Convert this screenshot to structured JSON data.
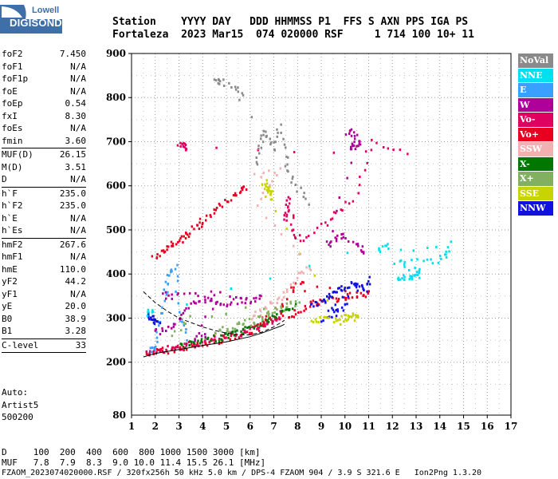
{
  "logo": {
    "top": "Lowell",
    "bottom": "DIGISONDE",
    "color": "#3f6fa8"
  },
  "header": {
    "row1": "Station    YYYY DAY   DDD HHMMSS P1  FFS S AXN PPS IGA PS",
    "row2": "Fortaleza  2023 Mar15  074 020000 RSF     1 714 100 10+ 11"
  },
  "params": [
    {
      "label": "foF2",
      "value": "7.450"
    },
    {
      "label": "foF1",
      "value": "N/A"
    },
    {
      "label": "foF1p",
      "value": "N/A"
    },
    {
      "label": "foE",
      "value": "N/A"
    },
    {
      "label": "foEp",
      "value": "0.54"
    },
    {
      "label": "fxI",
      "value": "8.30"
    },
    {
      "label": "foEs",
      "value": "N/A"
    },
    {
      "label": "fmin",
      "value": "3.60"
    },
    {
      "sep": true
    },
    {
      "label": "MUF(D)",
      "value": "26.15"
    },
    {
      "label": "M(D)",
      "value": "3.51"
    },
    {
      "label": "D",
      "value": "N/A"
    },
    {
      "sep": true
    },
    {
      "label": "h`F",
      "value": "235.0"
    },
    {
      "label": "h`F2",
      "value": "235.0"
    },
    {
      "label": "h`E",
      "value": "N/A"
    },
    {
      "label": "h`Es",
      "value": "N/A"
    },
    {
      "sep": true
    },
    {
      "label": "hmF2",
      "value": "267.6"
    },
    {
      "label": "hmF1",
      "value": "N/A"
    },
    {
      "label": "hmE",
      "value": "110.0"
    },
    {
      "label": "yF2",
      "value": "44.2"
    },
    {
      "label": "yF1",
      "value": "N/A"
    },
    {
      "label": "yE",
      "value": "20.0"
    },
    {
      "label": "B0",
      "value": "38.9"
    },
    {
      "label": "B1",
      "value": "3.28"
    },
    {
      "sep": true
    },
    {
      "label": "C-level",
      "value": "33"
    },
    {
      "sep": true
    }
  ],
  "auto": {
    "line1": "Auto:",
    "line2": "Artist5",
    "line3": "500200"
  },
  "legend": [
    {
      "label": "NoVal",
      "color": "#8a8a8a"
    },
    {
      "label": "NNE",
      "color": "#00e0f0"
    },
    {
      "label": "E",
      "color": "#3aa0ff"
    },
    {
      "label": "W",
      "color": "#b0009a"
    },
    {
      "label": "Vo-",
      "color": "#e00060"
    },
    {
      "label": "Vo+",
      "color": "#e80020"
    },
    {
      "label": "SSW",
      "color": "#f4b0b0"
    },
    {
      "label": "X-",
      "color": "#007800"
    },
    {
      "label": "X+",
      "color": "#80b060"
    },
    {
      "label": "SSE",
      "color": "#c8d400"
    },
    {
      "label": "NNW",
      "color": "#1010e0"
    }
  ],
  "footer": {
    "d_row": "D     100  200  400  600  800 1000 1500 3000 [km]",
    "muf_row": "MUF   7.8  7.9  8.3  9.0 10.0 11.4 15.5 26.1 [MHz]",
    "info_row": "FZAOM_2023074020000.RSF / 320fx256h 50 kHz 5.0 km / DPS-4 FZAOM 904 / 3.9 S 321.6 E   Ion2Png 1.3.20"
  },
  "chart_data": {
    "type": "scatter",
    "title": "",
    "xlabel": "",
    "ylabel": "",
    "xlim": [
      1,
      17
    ],
    "ylim": [
      80,
      900
    ],
    "x_ticks": [
      1,
      2,
      3,
      4,
      5,
      6,
      7,
      8,
      9,
      10,
      11,
      12,
      13,
      14,
      15,
      16,
      17
    ],
    "y_ticks": [
      200,
      300,
      400,
      500,
      600,
      700,
      800,
      900
    ],
    "y_tick_labels": [
      "200",
      "300",
      "400",
      "500",
      "600",
      "700",
      "800",
      "900"
    ],
    "y_bottom_label": "80",
    "grid": true,
    "legend_position": "right",
    "traces": [
      {
        "name": "Vo+",
        "color": "#e80020",
        "points": [
          [
            1.6,
            222
          ],
          [
            2.0,
            226
          ],
          [
            2.5,
            230
          ],
          [
            3.0,
            234
          ],
          [
            3.5,
            238
          ],
          [
            4.0,
            243
          ],
          [
            4.5,
            250
          ],
          [
            5.0,
            257
          ],
          [
            5.5,
            264
          ],
          [
            6.0,
            272
          ],
          [
            6.5,
            282
          ],
          [
            7.0,
            294
          ],
          [
            7.3,
            310
          ],
          [
            7.45,
            335
          ]
        ]
      },
      {
        "name": "Vo-",
        "color": "#e00060",
        "points": [
          [
            1.6,
            225
          ],
          [
            2.0,
            229
          ],
          [
            2.5,
            233
          ],
          [
            3.0,
            238
          ],
          [
            3.5,
            242
          ],
          [
            4.0,
            247
          ],
          [
            4.5,
            254
          ],
          [
            5.0,
            261
          ],
          [
            5.5,
            268
          ],
          [
            6.0,
            276
          ],
          [
            6.5,
            286
          ],
          [
            7.0,
            298
          ],
          [
            7.3,
            315
          ]
        ]
      },
      {
        "name": "X-",
        "color": "#007800",
        "points": [
          [
            3.0,
            240
          ],
          [
            3.5,
            244
          ],
          [
            4.0,
            250
          ],
          [
            4.5,
            256
          ],
          [
            5.0,
            263
          ],
          [
            5.5,
            271
          ],
          [
            6.0,
            280
          ],
          [
            6.5,
            292
          ],
          [
            7.0,
            306
          ],
          [
            7.5,
            320
          ],
          [
            7.9,
            330
          ]
        ]
      },
      {
        "name": "E",
        "color": "#3aa0ff",
        "points": [
          [
            1.7,
            230
          ],
          [
            2.0,
            240
          ],
          [
            2.2,
            300
          ],
          [
            2.4,
            360
          ],
          [
            2.6,
            400
          ],
          [
            2.8,
            420
          ],
          [
            3.0,
            300
          ],
          [
            3.4,
            250
          ]
        ]
      },
      {
        "name": "W",
        "color": "#b0009a",
        "points": [
          [
            1.9,
            270
          ],
          [
            2.5,
            280
          ],
          [
            3.0,
            300
          ],
          [
            3.5,
            330
          ],
          [
            4.0,
            345
          ],
          [
            4.5,
            340
          ],
          [
            5.0,
            335
          ],
          [
            5.5,
            345
          ],
          [
            6.0,
            340
          ],
          [
            6.5,
            350
          ],
          [
            2.3,
            355
          ],
          [
            2.8,
            350
          ],
          [
            4.7,
            360
          ],
          [
            3.6,
            258
          ],
          [
            4.2,
            262
          ]
        ]
      },
      {
        "name": "Vo+",
        "color": "#e80020",
        "points": [
          [
            1.9,
            440
          ],
          [
            2.5,
            460
          ],
          [
            3.0,
            480
          ],
          [
            3.5,
            500
          ],
          [
            4.0,
            520
          ],
          [
            4.5,
            545
          ],
          [
            5.0,
            570
          ],
          [
            5.5,
            590
          ],
          [
            5.8,
            600
          ],
          [
            2.0,
            445
          ],
          [
            2.8,
            470
          ],
          [
            4.2,
            530
          ]
        ]
      },
      {
        "name": "Vo+",
        "color": "#e80020",
        "points": [
          [
            7.6,
            300
          ],
          [
            8.0,
            320
          ],
          [
            8.5,
            335
          ],
          [
            9.0,
            340
          ],
          [
            9.5,
            345
          ],
          [
            10.0,
            350
          ],
          [
            10.5,
            355
          ],
          [
            11.0,
            360
          ],
          [
            7.7,
            370
          ],
          [
            8.2,
            380
          ],
          [
            6.3,
            290
          ],
          [
            6.8,
            310
          ]
        ]
      },
      {
        "name": "NNW",
        "color": "#1010e0",
        "points": [
          [
            8.5,
            330
          ],
          [
            9.0,
            340
          ],
          [
            9.3,
            350
          ],
          [
            9.6,
            360
          ],
          [
            9.9,
            370
          ],
          [
            10.2,
            380
          ],
          [
            10.5,
            375
          ],
          [
            10.8,
            365
          ],
          [
            11.0,
            390
          ],
          [
            9.2,
            320
          ],
          [
            10.0,
            330
          ],
          [
            9.5,
            310
          ],
          [
            8.8,
            300
          ]
        ]
      },
      {
        "name": "NNW",
        "color": "#1010e0",
        "points": [
          [
            1.7,
            310
          ],
          [
            1.8,
            305
          ],
          [
            2.0,
            295
          ],
          [
            2.1,
            290
          ]
        ]
      },
      {
        "name": "SSE",
        "color": "#c8d400",
        "points": [
          [
            8.6,
            295
          ],
          [
            9.0,
            300
          ],
          [
            9.5,
            300
          ],
          [
            10.0,
            305
          ],
          [
            10.5,
            300
          ],
          [
            10.3,
            310
          ],
          [
            9.8,
            295
          ],
          [
            6.5,
            600
          ],
          [
            6.8,
            590
          ],
          [
            6.9,
            575
          ],
          [
            6.6,
            610
          ],
          [
            6.7,
            580
          ]
        ]
      },
      {
        "name": "NNE",
        "color": "#00e0f0",
        "points": [
          [
            12.2,
            390
          ],
          [
            12.5,
            395
          ],
          [
            12.8,
            392
          ],
          [
            13.0,
            400
          ],
          [
            13.1,
            410
          ],
          [
            12.0,
            430
          ],
          [
            13.5,
            430
          ],
          [
            14.2,
            440
          ],
          [
            14.4,
            470
          ],
          [
            11.3,
            450
          ],
          [
            11.8,
            470
          ],
          [
            1.7,
            310
          ],
          [
            1.8,
            320
          ]
        ]
      },
      {
        "name": "W",
        "color": "#b0009a",
        "points": [
          [
            10.0,
            720
          ],
          [
            10.3,
            725
          ],
          [
            10.6,
            700
          ],
          [
            10.2,
            690
          ],
          [
            10.4,
            690
          ],
          [
            9.2,
            470
          ],
          [
            9.6,
            480
          ],
          [
            9.9,
            490
          ],
          [
            10.6,
            460
          ],
          [
            10.8,
            450
          ]
        ]
      },
      {
        "name": "Vo-",
        "color": "#e00060",
        "points": [
          [
            7.4,
            520
          ],
          [
            7.5,
            550
          ],
          [
            7.6,
            580
          ],
          [
            7.8,
            500
          ],
          [
            8.0,
            480
          ],
          [
            9.0,
            510
          ],
          [
            9.6,
            540
          ],
          [
            10.5,
            580
          ],
          [
            11.0,
            700
          ],
          [
            12.6,
            680
          ],
          [
            3.0,
            690
          ],
          [
            3.2,
            695
          ],
          [
            3.3,
            680
          ]
        ]
      },
      {
        "name": "NoVal",
        "color": "#8a8a8a",
        "points": [
          [
            6.2,
            650
          ],
          [
            6.4,
            700
          ],
          [
            6.6,
            720
          ],
          [
            7.0,
            690
          ],
          [
            7.2,
            740
          ],
          [
            7.5,
            660
          ],
          [
            7.8,
            610
          ],
          [
            8.5,
            560
          ],
          [
            5.6,
            800
          ],
          [
            5.4,
            830
          ],
          [
            4.5,
            840
          ],
          [
            4.7,
            835
          ]
        ]
      },
      {
        "name": "SSW",
        "color": "#f4b0b0",
        "points": [
          [
            6.0,
            300
          ],
          [
            6.5,
            320
          ],
          [
            7.0,
            340
          ],
          [
            7.5,
            360
          ],
          [
            8.0,
            400
          ],
          [
            8.5,
            420
          ],
          [
            6.2,
            560
          ],
          [
            7.2,
            640
          ],
          [
            5.9,
            620
          ]
        ]
      },
      {
        "name": "X+",
        "color": "#80b060",
        "points": [
          [
            4.5,
            270
          ],
          [
            5.0,
            278
          ],
          [
            5.5,
            286
          ],
          [
            6.0,
            294
          ],
          [
            6.5,
            305
          ],
          [
            7.0,
            318
          ],
          [
            7.5,
            330
          ],
          [
            8.0,
            340
          ],
          [
            3.5,
            300
          ],
          [
            2.5,
            260
          ]
        ]
      }
    ],
    "profile_curve": [
      [
        1.5,
        212
      ],
      [
        2.0,
        220
      ],
      [
        3.0,
        229
      ],
      [
        4.0,
        238
      ],
      [
        5.0,
        246
      ],
      [
        6.0,
        258
      ],
      [
        6.5,
        266
      ],
      [
        7.0,
        276
      ],
      [
        7.3,
        282
      ],
      [
        7.45,
        286
      ]
    ],
    "model_curve": [
      [
        1.5,
        360
      ],
      [
        2.0,
        335
      ],
      [
        2.5,
        316
      ],
      [
        3.0,
        300
      ],
      [
        3.5,
        290
      ],
      [
        4.0,
        280
      ],
      [
        4.5,
        272
      ],
      [
        5.0,
        266
      ],
      [
        5.5,
        262
      ],
      [
        6.0,
        262
      ],
      [
        6.5,
        268
      ],
      [
        7.0,
        280
      ],
      [
        7.3,
        290
      ],
      [
        7.45,
        295
      ]
    ]
  }
}
